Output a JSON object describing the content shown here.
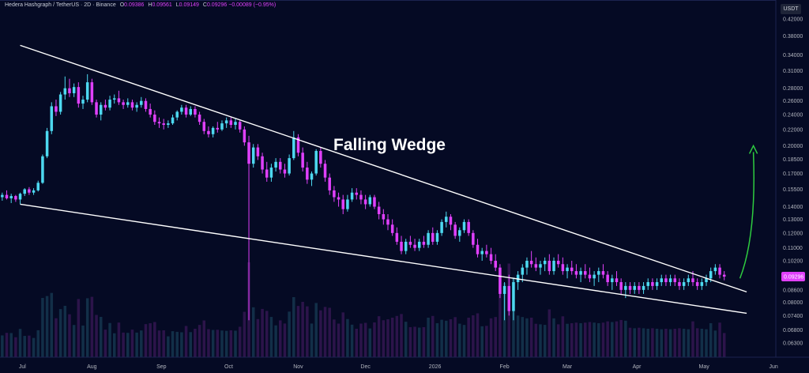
{
  "header": {
    "symbol": "Hedera Hashgraph / TetherUS · 2D · Binance",
    "open_label": "O",
    "open": "0.09386",
    "high_label": "H",
    "high": "0.09561",
    "low_label": "L",
    "low": "0.09149",
    "close_label": "C",
    "close": "0.09296",
    "change": "−0.00089 (−0.95%)"
  },
  "currency": "USDT",
  "current_price": "0.09296",
  "colors": {
    "up": "#4dd8f0",
    "down": "#e040fb",
    "background": "#050a24",
    "trendline": "#ffffff",
    "arrow": "#2ecc40"
  },
  "chart_data": {
    "type": "candlestick",
    "title": "",
    "annotations": [
      {
        "text": "Falling Wedge"
      }
    ],
    "yscale": "log",
    "ylim": [
      0.058,
      0.44
    ],
    "y_ticks": [
      "0.42000",
      "0.38000",
      "0.34000",
      "0.31000",
      "0.28000",
      "0.26000",
      "0.24000",
      "0.22000",
      "0.20000",
      "0.18500",
      "0.17000",
      "0.15500",
      "0.14000",
      "0.13000",
      "0.12000",
      "0.11000",
      "0.10200",
      "0.09296",
      "0.08600",
      "0.08000",
      "0.07400",
      "0.06800",
      "0.06300"
    ],
    "x_ticks": [
      "Jul",
      "Aug",
      "Sep",
      "Oct",
      "Nov",
      "Dec",
      "2026",
      "Feb",
      "Mar",
      "Apr",
      "May",
      "Jun"
    ],
    "x_start": "2025-06-21",
    "x_end": "2026-06-02",
    "period_days": 2,
    "wedge_upper": [
      [
        "2025-06-30",
        0.36
      ],
      [
        "2026-05-20",
        0.085
      ]
    ],
    "wedge_lower": [
      [
        "2025-06-30",
        0.142
      ],
      [
        "2026-05-20",
        0.075
      ]
    ],
    "arrow": {
      "from": [
        "2026-05-17",
        0.092
      ],
      "to": [
        "2026-05-23",
        0.2
      ]
    },
    "candles": [
      [
        "2025-06-22",
        0.148,
        0.152,
        0.145,
        0.15
      ],
      [
        "2025-06-24",
        0.15,
        0.154,
        0.146,
        0.147
      ],
      [
        "2025-06-26",
        0.147,
        0.151,
        0.143,
        0.149
      ],
      [
        "2025-06-28",
        0.149,
        0.15,
        0.144,
        0.146
      ],
      [
        "2025-06-30",
        0.146,
        0.152,
        0.142,
        0.151
      ],
      [
        "2025-07-02",
        0.151,
        0.156,
        0.149,
        0.155
      ],
      [
        "2025-07-04",
        0.155,
        0.157,
        0.15,
        0.152
      ],
      [
        "2025-07-06",
        0.152,
        0.156,
        0.15,
        0.154
      ],
      [
        "2025-07-08",
        0.154,
        0.163,
        0.153,
        0.161
      ],
      [
        "2025-07-10",
        0.161,
        0.19,
        0.16,
        0.188
      ],
      [
        "2025-07-12",
        0.188,
        0.222,
        0.186,
        0.218
      ],
      [
        "2025-07-14",
        0.218,
        0.258,
        0.214,
        0.252
      ],
      [
        "2025-07-16",
        0.252,
        0.262,
        0.238,
        0.244
      ],
      [
        "2025-07-18",
        0.244,
        0.274,
        0.24,
        0.27
      ],
      [
        "2025-07-20",
        0.27,
        0.3,
        0.262,
        0.28
      ],
      [
        "2025-07-22",
        0.28,
        0.296,
        0.266,
        0.272
      ],
      [
        "2025-07-24",
        0.272,
        0.288,
        0.266,
        0.282
      ],
      [
        "2025-07-26",
        0.282,
        0.29,
        0.25,
        0.256
      ],
      [
        "2025-07-28",
        0.256,
        0.268,
        0.248,
        0.262
      ],
      [
        "2025-07-30",
        0.262,
        0.304,
        0.258,
        0.29
      ],
      [
        "2025-08-01",
        0.29,
        0.296,
        0.254,
        0.258
      ],
      [
        "2025-08-03",
        0.258,
        0.262,
        0.236,
        0.24
      ],
      [
        "2025-08-05",
        0.24,
        0.258,
        0.232,
        0.254
      ],
      [
        "2025-08-07",
        0.254,
        0.262,
        0.246,
        0.25
      ],
      [
        "2025-08-09",
        0.25,
        0.268,
        0.246,
        0.262
      ],
      [
        "2025-08-11",
        0.262,
        0.27,
        0.256,
        0.264
      ],
      [
        "2025-08-13",
        0.264,
        0.276,
        0.254,
        0.258
      ],
      [
        "2025-08-15",
        0.258,
        0.262,
        0.248,
        0.254
      ],
      [
        "2025-08-17",
        0.254,
        0.264,
        0.25,
        0.258
      ],
      [
        "2025-08-19",
        0.258,
        0.262,
        0.246,
        0.25
      ],
      [
        "2025-08-21",
        0.25,
        0.258,
        0.244,
        0.254
      ],
      [
        "2025-08-23",
        0.254,
        0.266,
        0.25,
        0.26
      ],
      [
        "2025-08-25",
        0.26,
        0.264,
        0.244,
        0.248
      ],
      [
        "2025-08-27",
        0.248,
        0.256,
        0.236,
        0.24
      ],
      [
        "2025-08-29",
        0.24,
        0.246,
        0.226,
        0.23
      ],
      [
        "2025-08-31",
        0.23,
        0.236,
        0.222,
        0.228
      ],
      [
        "2025-09-02",
        0.228,
        0.234,
        0.22,
        0.226
      ],
      [
        "2025-09-04",
        0.226,
        0.232,
        0.222,
        0.228
      ],
      [
        "2025-09-06",
        0.228,
        0.24,
        0.226,
        0.236
      ],
      [
        "2025-09-08",
        0.236,
        0.246,
        0.232,
        0.244
      ],
      [
        "2025-09-10",
        0.244,
        0.254,
        0.24,
        0.25
      ],
      [
        "2025-09-12",
        0.25,
        0.254,
        0.236,
        0.24
      ],
      [
        "2025-09-14",
        0.24,
        0.252,
        0.238,
        0.248
      ],
      [
        "2025-09-16",
        0.248,
        0.252,
        0.236,
        0.24
      ],
      [
        "2025-09-18",
        0.24,
        0.244,
        0.226,
        0.23
      ],
      [
        "2025-09-20",
        0.23,
        0.234,
        0.214,
        0.218
      ],
      [
        "2025-09-22",
        0.218,
        0.224,
        0.21,
        0.214
      ],
      [
        "2025-09-24",
        0.214,
        0.224,
        0.21,
        0.222
      ],
      [
        "2025-09-26",
        0.222,
        0.23,
        0.216,
        0.22
      ],
      [
        "2025-09-28",
        0.22,
        0.232,
        0.218,
        0.228
      ],
      [
        "2025-09-30",
        0.228,
        0.236,
        0.222,
        0.232
      ],
      [
        "2025-10-02",
        0.232,
        0.236,
        0.222,
        0.226
      ],
      [
        "2025-10-04",
        0.226,
        0.234,
        0.22,
        0.23
      ],
      [
        "2025-10-06",
        0.23,
        0.232,
        0.216,
        0.22
      ],
      [
        "2025-10-08",
        0.22,
        0.224,
        0.2,
        0.204
      ],
      [
        "2025-10-10",
        0.204,
        0.212,
        0.072,
        0.18
      ],
      [
        "2025-10-12",
        0.18,
        0.202,
        0.176,
        0.198
      ],
      [
        "2025-10-14",
        0.198,
        0.202,
        0.184,
        0.188
      ],
      [
        "2025-10-16",
        0.188,
        0.192,
        0.17,
        0.174
      ],
      [
        "2025-10-18",
        0.174,
        0.182,
        0.162,
        0.166
      ],
      [
        "2025-10-20",
        0.166,
        0.18,
        0.162,
        0.176
      ],
      [
        "2025-10-22",
        0.176,
        0.186,
        0.172,
        0.182
      ],
      [
        "2025-10-24",
        0.182,
        0.186,
        0.17,
        0.174
      ],
      [
        "2025-10-26",
        0.174,
        0.18,
        0.166,
        0.17
      ],
      [
        "2025-10-28",
        0.17,
        0.19,
        0.168,
        0.186
      ],
      [
        "2025-10-30",
        0.186,
        0.218,
        0.184,
        0.21
      ],
      [
        "2025-11-01",
        0.21,
        0.214,
        0.188,
        0.192
      ],
      [
        "2025-11-03",
        0.192,
        0.198,
        0.172,
        0.176
      ],
      [
        "2025-11-05",
        0.176,
        0.182,
        0.16,
        0.164
      ],
      [
        "2025-11-07",
        0.164,
        0.172,
        0.158,
        0.17
      ],
      [
        "2025-11-09",
        0.17,
        0.196,
        0.168,
        0.194
      ],
      [
        "2025-11-11",
        0.194,
        0.198,
        0.176,
        0.18
      ],
      [
        "2025-11-13",
        0.18,
        0.184,
        0.162,
        0.166
      ],
      [
        "2025-11-15",
        0.166,
        0.17,
        0.15,
        0.154
      ],
      [
        "2025-11-17",
        0.154,
        0.158,
        0.144,
        0.148
      ],
      [
        "2025-11-19",
        0.148,
        0.152,
        0.14,
        0.146
      ],
      [
        "2025-11-21",
        0.146,
        0.15,
        0.134,
        0.138
      ],
      [
        "2025-11-23",
        0.138,
        0.15,
        0.136,
        0.146
      ],
      [
        "2025-11-25",
        0.146,
        0.156,
        0.144,
        0.152
      ],
      [
        "2025-11-27",
        0.152,
        0.156,
        0.146,
        0.15
      ],
      [
        "2025-11-29",
        0.15,
        0.154,
        0.142,
        0.146
      ],
      [
        "2025-12-01",
        0.146,
        0.15,
        0.138,
        0.142
      ],
      [
        "2025-12-03",
        0.142,
        0.15,
        0.14,
        0.148
      ],
      [
        "2025-12-05",
        0.148,
        0.15,
        0.138,
        0.14
      ],
      [
        "2025-12-07",
        0.14,
        0.144,
        0.13,
        0.134
      ],
      [
        "2025-12-09",
        0.134,
        0.138,
        0.126,
        0.13
      ],
      [
        "2025-12-11",
        0.13,
        0.134,
        0.122,
        0.126
      ],
      [
        "2025-12-13",
        0.126,
        0.13,
        0.118,
        0.12
      ],
      [
        "2025-12-15",
        0.12,
        0.124,
        0.112,
        0.114
      ],
      [
        "2025-12-17",
        0.114,
        0.118,
        0.106,
        0.108
      ],
      [
        "2025-12-19",
        0.108,
        0.116,
        0.106,
        0.114
      ],
      [
        "2025-12-21",
        0.114,
        0.118,
        0.11,
        0.112
      ],
      [
        "2025-12-23",
        0.112,
        0.116,
        0.108,
        0.11
      ],
      [
        "2025-12-25",
        0.11,
        0.116,
        0.108,
        0.114
      ],
      [
        "2025-12-27",
        0.114,
        0.118,
        0.11,
        0.112
      ],
      [
        "2025-12-29",
        0.112,
        0.122,
        0.11,
        0.12
      ],
      [
        "2025-12-31",
        0.12,
        0.124,
        0.112,
        0.114
      ],
      [
        "2026-01-02",
        0.114,
        0.122,
        0.112,
        0.12
      ],
      [
        "2026-01-04",
        0.12,
        0.13,
        0.118,
        0.128
      ],
      [
        "2026-01-06",
        0.128,
        0.136,
        0.124,
        0.132
      ],
      [
        "2026-01-08",
        0.132,
        0.134,
        0.122,
        0.126
      ],
      [
        "2026-01-10",
        0.126,
        0.128,
        0.116,
        0.118
      ],
      [
        "2026-01-12",
        0.118,
        0.124,
        0.114,
        0.122
      ],
      [
        "2026-01-14",
        0.122,
        0.13,
        0.12,
        0.128
      ],
      [
        "2026-01-16",
        0.128,
        0.13,
        0.118,
        0.12
      ],
      [
        "2026-01-18",
        0.12,
        0.122,
        0.11,
        0.112
      ],
      [
        "2026-01-20",
        0.112,
        0.116,
        0.104,
        0.106
      ],
      [
        "2026-01-22",
        0.106,
        0.11,
        0.102,
        0.108
      ],
      [
        "2026-01-24",
        0.108,
        0.112,
        0.104,
        0.106
      ],
      [
        "2026-01-26",
        0.106,
        0.11,
        0.1,
        0.102
      ],
      [
        "2026-01-28",
        0.102,
        0.106,
        0.096,
        0.098
      ],
      [
        "2026-01-30",
        0.098,
        0.1,
        0.082,
        0.084
      ],
      [
        "2026-02-01",
        0.084,
        0.09,
        0.072,
        0.088
      ],
      [
        "2026-02-03",
        0.088,
        0.094,
        0.074,
        0.076
      ],
      [
        "2026-02-05",
        0.076,
        0.092,
        0.072,
        0.09
      ],
      [
        "2026-02-07",
        0.09,
        0.096,
        0.086,
        0.094
      ],
      [
        "2026-02-09",
        0.094,
        0.1,
        0.09,
        0.098
      ],
      [
        "2026-02-11",
        0.098,
        0.104,
        0.094,
        0.102
      ],
      [
        "2026-02-13",
        0.102,
        0.108,
        0.098,
        0.1
      ],
      [
        "2026-02-15",
        0.1,
        0.104,
        0.096,
        0.098
      ],
      [
        "2026-02-17",
        0.098,
        0.102,
        0.094,
        0.1
      ],
      [
        "2026-02-19",
        0.1,
        0.104,
        0.096,
        0.102
      ],
      [
        "2026-02-21",
        0.102,
        0.106,
        0.094,
        0.096
      ],
      [
        "2026-02-23",
        0.096,
        0.104,
        0.094,
        0.102
      ],
      [
        "2026-02-25",
        0.102,
        0.106,
        0.098,
        0.1
      ],
      [
        "2026-02-27",
        0.1,
        0.104,
        0.094,
        0.096
      ],
      [
        "2026-03-01",
        0.096,
        0.1,
        0.092,
        0.098
      ],
      [
        "2026-03-03",
        0.098,
        0.102,
        0.094,
        0.096
      ],
      [
        "2026-03-05",
        0.096,
        0.1,
        0.092,
        0.094
      ],
      [
        "2026-03-07",
        0.094,
        0.098,
        0.09,
        0.096
      ],
      [
        "2026-03-09",
        0.096,
        0.1,
        0.092,
        0.094
      ],
      [
        "2026-03-11",
        0.094,
        0.098,
        0.09,
        0.092
      ],
      [
        "2026-03-13",
        0.092,
        0.096,
        0.088,
        0.094
      ],
      [
        "2026-03-15",
        0.094,
        0.098,
        0.09,
        0.096
      ],
      [
        "2026-03-17",
        0.096,
        0.1,
        0.092,
        0.094
      ],
      [
        "2026-03-19",
        0.094,
        0.096,
        0.088,
        0.09
      ],
      [
        "2026-03-21",
        0.09,
        0.094,
        0.086,
        0.092
      ],
      [
        "2026-03-23",
        0.092,
        0.096,
        0.088,
        0.09
      ],
      [
        "2026-03-25",
        0.09,
        0.092,
        0.084,
        0.086
      ],
      [
        "2026-03-27",
        0.086,
        0.09,
        0.082,
        0.088
      ],
      [
        "2026-03-29",
        0.088,
        0.09,
        0.084,
        0.086
      ],
      [
        "2026-03-31",
        0.086,
        0.09,
        0.084,
        0.088
      ],
      [
        "2026-04-02",
        0.088,
        0.09,
        0.084,
        0.086
      ],
      [
        "2026-04-04",
        0.086,
        0.09,
        0.084,
        0.088
      ],
      [
        "2026-04-06",
        0.088,
        0.092,
        0.086,
        0.09
      ],
      [
        "2026-04-08",
        0.09,
        0.092,
        0.086,
        0.088
      ],
      [
        "2026-04-10",
        0.088,
        0.092,
        0.086,
        0.09
      ],
      [
        "2026-04-12",
        0.09,
        0.094,
        0.088,
        0.092
      ],
      [
        "2026-04-14",
        0.092,
        0.094,
        0.088,
        0.09
      ],
      [
        "2026-04-16",
        0.09,
        0.094,
        0.088,
        0.092
      ],
      [
        "2026-04-18",
        0.092,
        0.094,
        0.088,
        0.09
      ],
      [
        "2026-04-20",
        0.09,
        0.092,
        0.086,
        0.088
      ],
      [
        "2026-04-22",
        0.088,
        0.092,
        0.086,
        0.09
      ],
      [
        "2026-04-24",
        0.09,
        0.094,
        0.088,
        0.092
      ],
      [
        "2026-04-26",
        0.092,
        0.096,
        0.088,
        0.09
      ],
      [
        "2026-04-28",
        0.09,
        0.092,
        0.086,
        0.088
      ],
      [
        "2026-04-30",
        0.088,
        0.092,
        0.086,
        0.09
      ],
      [
        "2026-05-02",
        0.09,
        0.094,
        0.088,
        0.092
      ],
      [
        "2026-05-04",
        0.092,
        0.098,
        0.09,
        0.096
      ],
      [
        "2026-05-06",
        0.096,
        0.1,
        0.094,
        0.098
      ],
      [
        "2026-05-08",
        0.098,
        0.1,
        0.092,
        0.094
      ],
      [
        "2026-05-10",
        0.094,
        0.096,
        0.091,
        0.09296
      ]
    ]
  }
}
